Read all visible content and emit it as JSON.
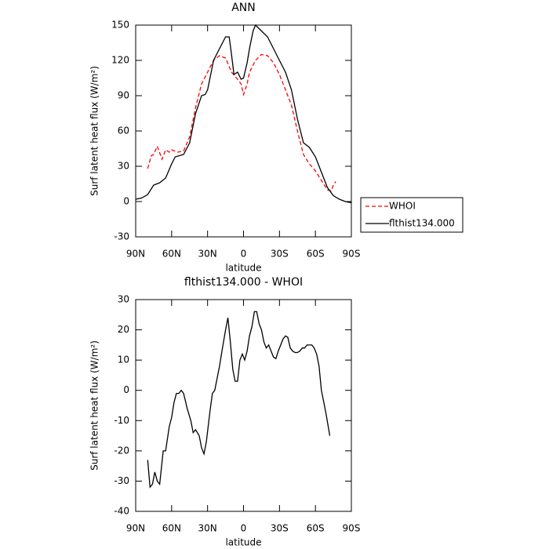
{
  "chart_data": [
    {
      "type": "line",
      "title": "ANN",
      "xlabel": "latitude",
      "ylabel": "Surf latent heat flux (W/m²)",
      "xlim": [
        90,
        -90
      ],
      "xticks": [
        {
          "value": 90,
          "label": "90N"
        },
        {
          "value": 60,
          "label": "60N"
        },
        {
          "value": 30,
          "label": "30N"
        },
        0,
        {
          "value": -30,
          "label": "30S"
        },
        {
          "value": -60,
          "label": "60S"
        },
        {
          "value": -90,
          "label": "90S"
        }
      ],
      "ylim": [
        -30,
        150
      ],
      "yticks": [
        -30,
        0,
        30,
        60,
        90,
        120,
        150
      ],
      "legend": "right",
      "series": [
        {
          "name": "WHOI",
          "color": "#ff0000",
          "dashed": true,
          "x": [
            80,
            77,
            75,
            72,
            68,
            65,
            62,
            60,
            55,
            50,
            45,
            40,
            35,
            30,
            25,
            20,
            15,
            10,
            5,
            2,
            0,
            -3,
            -5,
            -10,
            -15,
            -20,
            -25,
            -30,
            -35,
            -40,
            -45,
            -50,
            -55,
            -60,
            -65,
            -70,
            -73,
            -75,
            -77
          ],
          "values": [
            28,
            39,
            40,
            47,
            36,
            44,
            42,
            44,
            42,
            43,
            55,
            80,
            100,
            110,
            120,
            124,
            122,
            110,
            104,
            100,
            91,
            100,
            110,
            120,
            125,
            124,
            118,
            108,
            95,
            82,
            60,
            40,
            32,
            26,
            18,
            10,
            9,
            14,
            17
          ]
        },
        {
          "name": "flthist134.000",
          "color": "#000000",
          "dashed": false,
          "x": [
            90,
            85,
            80,
            75,
            70,
            65,
            60,
            57,
            50,
            45,
            40,
            35,
            32,
            30,
            25,
            20,
            15,
            12,
            10,
            8,
            5,
            2,
            0,
            -3,
            -5,
            -8,
            -10,
            -15,
            -20,
            -25,
            -30,
            -35,
            -40,
            -45,
            -50,
            -55,
            -60,
            -65,
            -70,
            -75,
            -80,
            -85,
            -90
          ],
          "values": [
            2,
            3,
            6,
            14,
            16,
            20,
            32,
            38,
            40,
            50,
            75,
            90,
            91,
            95,
            120,
            130,
            140,
            140,
            125,
            108,
            110,
            104,
            105,
            118,
            130,
            145,
            150,
            145,
            140,
            130,
            120,
            110,
            95,
            70,
            50,
            46,
            38,
            25,
            12,
            5,
            2,
            0,
            -1
          ]
        }
      ]
    },
    {
      "type": "line",
      "title": "flthist134.000 - WHOI",
      "xlabel": "latitude",
      "ylabel": "Surf latent heat flux (W/m²)",
      "xlim": [
        90,
        -90
      ],
      "xticks": [
        {
          "value": 90,
          "label": "90N"
        },
        {
          "value": 60,
          "label": "60N"
        },
        {
          "value": 30,
          "label": "30N"
        },
        0,
        {
          "value": -30,
          "label": "30S"
        },
        {
          "value": -60,
          "label": "60S"
        },
        {
          "value": -90,
          "label": "90S"
        }
      ],
      "ylim": [
        -40,
        30
      ],
      "yticks": [
        -40,
        -30,
        -20,
        -10,
        0,
        10,
        20,
        30
      ],
      "series": [
        {
          "color": "#000000",
          "dashed": false,
          "x": [
            80,
            78,
            76,
            74,
            72,
            70,
            67,
            65,
            62,
            60,
            58,
            56,
            54,
            52,
            50,
            47,
            44,
            42,
            40,
            37,
            35,
            33,
            31,
            28,
            26,
            24,
            20,
            18,
            15,
            13,
            11,
            9,
            7,
            5,
            3,
            1,
            -1,
            -3,
            -5,
            -7,
            -9,
            -11,
            -13,
            -15,
            -17,
            -19,
            -21,
            -23,
            -25,
            -27,
            -29,
            -31,
            -33,
            -35,
            -37,
            -39,
            -41,
            -43,
            -45,
            -47,
            -49,
            -51,
            -53,
            -55,
            -57,
            -59,
            -61,
            -63,
            -65,
            -67,
            -69,
            -72
          ],
          "values": [
            -23,
            -32,
            -31,
            -27,
            -30,
            -31,
            -20,
            -20,
            -12,
            -9,
            -4,
            -1,
            -1,
            0,
            -1,
            -6,
            -10,
            -14,
            -13,
            -15,
            -19,
            -21,
            -17,
            -7,
            -1,
            0,
            8,
            13,
            20,
            24,
            16,
            7,
            3,
            3,
            10,
            12,
            10,
            13,
            18,
            21,
            26,
            26,
            22,
            20,
            16,
            14,
            15,
            13,
            11,
            10.5,
            13,
            15,
            17,
            18,
            17.5,
            14,
            13,
            12.5,
            12.5,
            13,
            14,
            14,
            15,
            15,
            15,
            14,
            12,
            8,
            0,
            -4,
            -8,
            -15
          ]
        }
      ]
    }
  ]
}
